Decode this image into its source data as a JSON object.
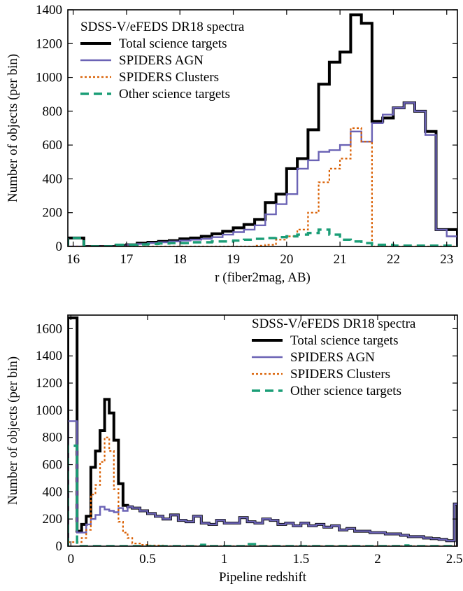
{
  "chart_data": [
    {
      "type": "line",
      "legend_title": "SDSS-V/eFEDS DR18 spectra",
      "legend_position": "top-left",
      "xlabel": "r (fiber2mag, AB)",
      "ylabel": "Number of objects (per bin)",
      "xlim": [
        15.9,
        23.2
      ],
      "ylim": [
        0,
        1400
      ],
      "x_ticks": [
        16,
        17,
        18,
        19,
        20,
        21,
        22,
        23
      ],
      "y_ticks": [
        0,
        200,
        400,
        600,
        800,
        1000,
        1200,
        1400
      ],
      "bin_edges": [
        15.9,
        16.2,
        16.5,
        16.8,
        17.0,
        17.2,
        17.4,
        17.6,
        17.8,
        18.0,
        18.2,
        18.4,
        18.6,
        18.8,
        19.0,
        19.2,
        19.4,
        19.6,
        19.8,
        20.0,
        20.2,
        20.4,
        20.6,
        20.8,
        21.0,
        21.2,
        21.4,
        21.6,
        21.8,
        22.0,
        22.2,
        22.4,
        22.6,
        22.8,
        23.0,
        23.2
      ],
      "series": [
        {
          "name": "Total science targets",
          "color": "#000000",
          "style": "solid",
          "values": [
            50,
            0,
            0,
            5,
            10,
            20,
            25,
            30,
            35,
            45,
            50,
            60,
            75,
            90,
            110,
            130,
            160,
            260,
            310,
            460,
            520,
            690,
            960,
            1090,
            1150,
            1370,
            1320,
            740,
            760,
            820,
            850,
            800,
            680,
            100,
            100
          ]
        },
        {
          "name": "SPIDERS AGN",
          "color": "#6b63b5",
          "style": "solid",
          "values": [
            0,
            0,
            0,
            0,
            10,
            15,
            20,
            25,
            30,
            35,
            40,
            45,
            55,
            70,
            85,
            100,
            125,
            190,
            250,
            310,
            460,
            510,
            560,
            570,
            600,
            680,
            620,
            730,
            780,
            820,
            850,
            800,
            660,
            100,
            60
          ]
        },
        {
          "name": "SPIDERS Clusters",
          "color": "#d95f02",
          "style": "dotted",
          "values": [
            0,
            0,
            0,
            0,
            0,
            0,
            0,
            0,
            0,
            0,
            0,
            0,
            0,
            0,
            0,
            0,
            5,
            10,
            40,
            60,
            100,
            200,
            380,
            460,
            520,
            700,
            620,
            0,
            0,
            0,
            0,
            0,
            0,
            0,
            0
          ]
        },
        {
          "name": "Other science targets",
          "color": "#1b9e77",
          "style": "dashed",
          "values": [
            50,
            0,
            0,
            10,
            10,
            12,
            15,
            18,
            20,
            20,
            25,
            25,
            30,
            30,
            35,
            40,
            45,
            50,
            55,
            60,
            70,
            80,
            100,
            70,
            40,
            30,
            20,
            10,
            10,
            5,
            5,
            5,
            5,
            5,
            5
          ]
        }
      ]
    },
    {
      "type": "line",
      "legend_title": "SDSS-V/eFEDS DR18 spectra",
      "legend_position": "top-right",
      "xlabel": "Pipeline redshift",
      "ylabel": "Number of objects (per bin)",
      "xlim": [
        -0.02,
        2.52
      ],
      "ylim": [
        0,
        1700
      ],
      "x_ticks": [
        0,
        0.5,
        1,
        1.5,
        2,
        2.5
      ],
      "x_tick_labels": [
        "0",
        "0.5",
        "1",
        "1.5",
        "2",
        "2.5"
      ],
      "y_ticks": [
        0,
        200,
        400,
        600,
        800,
        1000,
        1200,
        1400,
        1600
      ],
      "bin_edges": [
        -0.02,
        0.04,
        0.07,
        0.1,
        0.13,
        0.16,
        0.19,
        0.22,
        0.25,
        0.28,
        0.31,
        0.34,
        0.37,
        0.4,
        0.45,
        0.5,
        0.55,
        0.6,
        0.65,
        0.7,
        0.75,
        0.8,
        0.85,
        0.9,
        0.95,
        1.0,
        1.05,
        1.1,
        1.15,
        1.2,
        1.25,
        1.3,
        1.35,
        1.4,
        1.45,
        1.5,
        1.55,
        1.6,
        1.65,
        1.7,
        1.75,
        1.8,
        1.85,
        1.9,
        1.95,
        2.0,
        2.05,
        2.1,
        2.15,
        2.2,
        2.25,
        2.3,
        2.35,
        2.4,
        2.45,
        2.5,
        2.52
      ],
      "series": [
        {
          "name": "Total science targets",
          "color": "#000000",
          "style": "solid",
          "values": [
            1680,
            110,
            160,
            220,
            580,
            700,
            850,
            1080,
            980,
            780,
            460,
            300,
            290,
            280,
            260,
            240,
            220,
            200,
            230,
            190,
            180,
            220,
            170,
            160,
            190,
            170,
            170,
            210,
            180,
            170,
            200,
            190,
            160,
            170,
            150,
            170,
            150,
            160,
            140,
            150,
            120,
            130,
            110,
            110,
            100,
            100,
            90,
            90,
            80,
            70,
            70,
            60,
            55,
            50,
            40,
            310
          ]
        },
        {
          "name": "SPIDERS AGN",
          "color": "#6b63b5",
          "style": "solid",
          "values": [
            920,
            100,
            100,
            160,
            200,
            230,
            290,
            270,
            260,
            250,
            280,
            260,
            290,
            280,
            260,
            240,
            220,
            200,
            230,
            190,
            180,
            220,
            170,
            160,
            190,
            170,
            170,
            210,
            180,
            170,
            200,
            190,
            160,
            170,
            150,
            170,
            150,
            160,
            140,
            150,
            120,
            130,
            110,
            110,
            100,
            100,
            90,
            90,
            80,
            70,
            70,
            60,
            55,
            50,
            40,
            310
          ]
        },
        {
          "name": "SPIDERS Clusters",
          "color": "#d95f02",
          "style": "dotted",
          "values": [
            30,
            30,
            60,
            120,
            380,
            450,
            620,
            800,
            700,
            420,
            180,
            100,
            60,
            20,
            10,
            5,
            5,
            0,
            0,
            0,
            0,
            0,
            0,
            0,
            0,
            0,
            0,
            0,
            0,
            0,
            0,
            0,
            0,
            0,
            0,
            0,
            0,
            0,
            0,
            0,
            0,
            0,
            0,
            0,
            0,
            0,
            0,
            0,
            0,
            0,
            0,
            0,
            0,
            0,
            0,
            0
          ]
        },
        {
          "name": "Other science targets",
          "color": "#1b9e77",
          "style": "dashed",
          "values": [
            740,
            0,
            0,
            0,
            0,
            0,
            0,
            0,
            0,
            0,
            0,
            0,
            0,
            0,
            0,
            0,
            0,
            0,
            0,
            0,
            0,
            0,
            10,
            0,
            0,
            0,
            0,
            0,
            15,
            0,
            0,
            0,
            0,
            0,
            0,
            0,
            0,
            0,
            0,
            0,
            0,
            0,
            0,
            0,
            0,
            0,
            0,
            0,
            5,
            0,
            0,
            0,
            0,
            0,
            0,
            0
          ]
        }
      ]
    }
  ]
}
